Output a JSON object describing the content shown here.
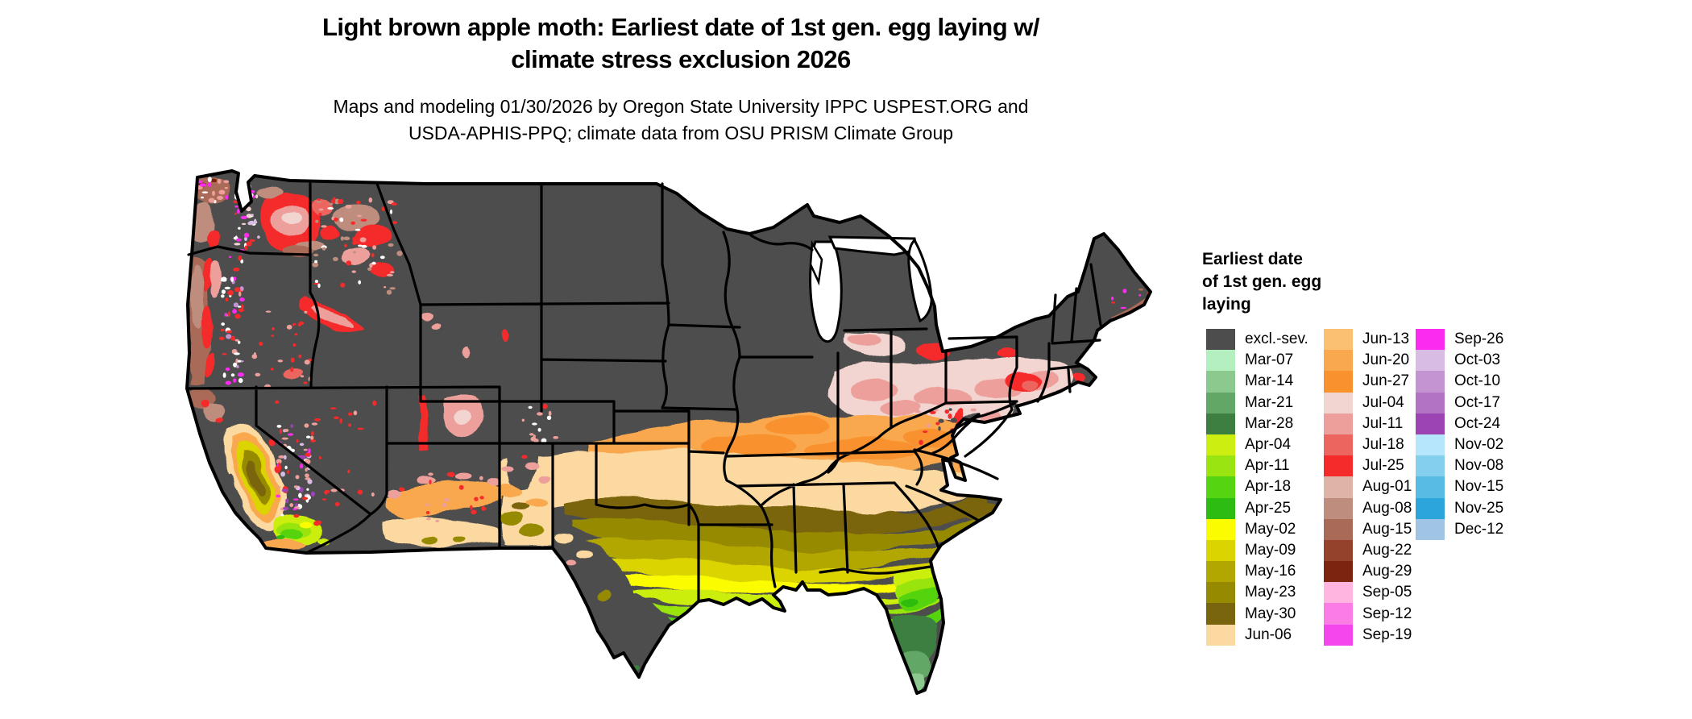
{
  "title": {
    "line1": "Light brown apple moth: Earliest date of 1st gen. egg laying w/",
    "line2": "climate stress exclusion 2026"
  },
  "subtitle": {
    "line1": "Maps and modeling 01/30/2026 by Oregon State University IPPC USPEST.ORG and",
    "line2": "USDA-APHIS-PPQ; climate data from OSU PRISM Climate Group"
  },
  "legend": {
    "title_lines": [
      "Earliest date",
      "of 1st gen. egg",
      "laying"
    ],
    "columns": [
      {
        "entries": [
          {
            "label": "excl.-sev.",
            "color": "#4D4D4D"
          },
          {
            "label": "Mar-07",
            "color": "#B4EFC0"
          },
          {
            "label": "Mar-14",
            "color": "#8BC98F"
          },
          {
            "label": "Mar-21",
            "color": "#62A766"
          },
          {
            "label": "Mar-28",
            "color": "#3C7F40"
          },
          {
            "label": "Apr-04",
            "color": "#CCEE11"
          },
          {
            "label": "Apr-11",
            "color": "#99E411"
          },
          {
            "label": "Apr-18",
            "color": "#55D411"
          },
          {
            "label": "Apr-25",
            "color": "#2DBC11"
          },
          {
            "label": "May-02",
            "color": "#FCFC00"
          },
          {
            "label": "May-09",
            "color": "#DCD400"
          },
          {
            "label": "May-16",
            "color": "#B2A700"
          },
          {
            "label": "May-23",
            "color": "#958A00"
          },
          {
            "label": "May-30",
            "color": "#7A650F"
          },
          {
            "label": "Jun-06",
            "color": "#FBD9A0"
          }
        ]
      },
      {
        "entries": [
          {
            "label": "Jun-13",
            "color": "#FBC070"
          },
          {
            "label": "Jun-20",
            "color": "#FAA84E"
          },
          {
            "label": "Jun-27",
            "color": "#F9922D"
          },
          {
            "label": "Jul-04",
            "color": "#F2D4D0"
          },
          {
            "label": "Jul-11",
            "color": "#EDA09B"
          },
          {
            "label": "Jul-18",
            "color": "#ED655F"
          },
          {
            "label": "Jul-25",
            "color": "#F52A2A"
          },
          {
            "label": "Aug-01",
            "color": "#DEB4A8"
          },
          {
            "label": "Aug-08",
            "color": "#BE8D7D"
          },
          {
            "label": "Aug-15",
            "color": "#A96A58"
          },
          {
            "label": "Aug-22",
            "color": "#94422C"
          },
          {
            "label": "Aug-29",
            "color": "#7C2410"
          },
          {
            "label": "Sep-05",
            "color": "#FFB5DF"
          },
          {
            "label": "Sep-12",
            "color": "#FB7CE4"
          },
          {
            "label": "Sep-19",
            "color": "#F545ED"
          }
        ]
      },
      {
        "entries": [
          {
            "label": "Sep-26",
            "color": "#FB2CF0"
          },
          {
            "label": "Oct-03",
            "color": "#D9BCE4"
          },
          {
            "label": "Oct-10",
            "color": "#C494D2"
          },
          {
            "label": "Oct-17",
            "color": "#B273C4"
          },
          {
            "label": "Oct-24",
            "color": "#9C44B4"
          },
          {
            "label": "Nov-02",
            "color": "#B5E6FB"
          },
          {
            "label": "Nov-08",
            "color": "#85CFEE"
          },
          {
            "label": "Nov-15",
            "color": "#57BBE4"
          },
          {
            "label": "Nov-25",
            "color": "#2BA5DB"
          },
          {
            "label": "Dec-12",
            "color": "#9FC4E4"
          }
        ]
      }
    ]
  },
  "map": {
    "base_color": "#4D4D4D",
    "border_color": "#000000",
    "background": "#FFFFFF"
  }
}
